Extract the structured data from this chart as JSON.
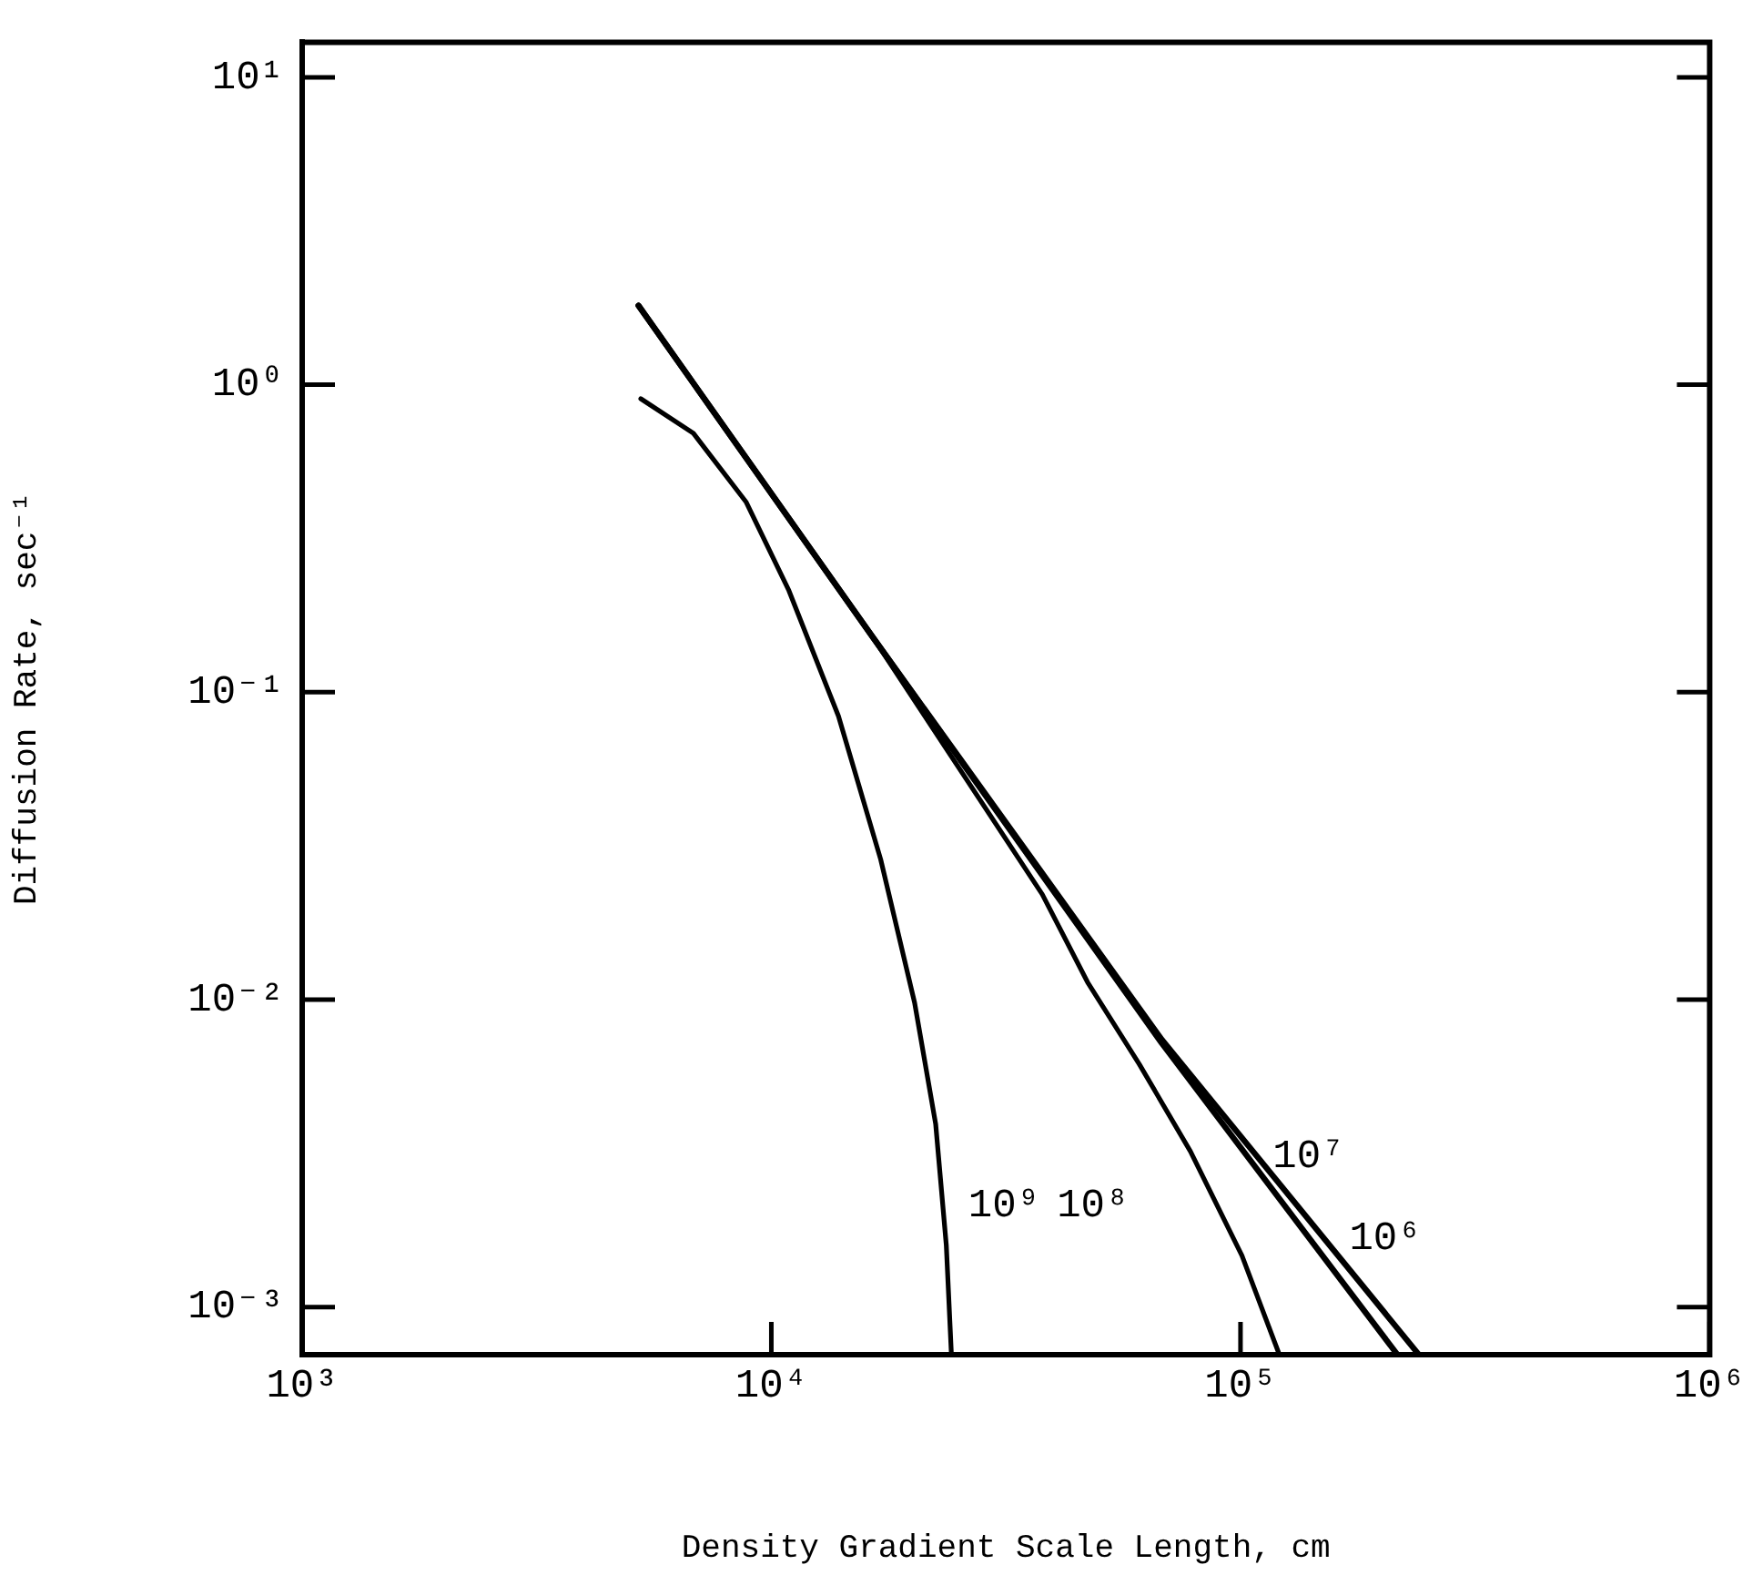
{
  "chart_data": {
    "type": "line",
    "xlabel": "Density Gradient Scale Length, cm",
    "ylabel": "Diffusion Rate, sec⁻¹",
    "log": "xy",
    "line_style": "solid",
    "xlim": [
      1000,
      1000000
    ],
    "ylim": [
      0.0007,
      13
    ],
    "xticks": [
      {
        "value": 1000,
        "label": "10³"
      },
      {
        "value": 10000,
        "label": "10⁴"
      },
      {
        "value": 100000,
        "label": "10⁵"
      },
      {
        "value": 1000000,
        "label": "10⁶"
      }
    ],
    "yticks": [
      {
        "value": 0.001,
        "label": "10⁻³"
      },
      {
        "value": 0.01,
        "label": "10⁻²"
      },
      {
        "value": 0.1,
        "label": "10⁻¹"
      },
      {
        "value": 1,
        "label": "10⁰"
      },
      {
        "value": 10,
        "label": "10¹"
      }
    ],
    "series": [
      {
        "name": "10⁶",
        "color": "#000000",
        "x": [
          5210,
          16400,
          68000,
          240000
        ],
        "values": [
          1.81,
          0.152,
          0.0074,
          0.0007
        ]
      },
      {
        "name": "10⁷",
        "color": "#000000",
        "x": [
          5210,
          16400,
          68000,
          216000
        ],
        "values": [
          1.81,
          0.152,
          0.0072,
          0.0007
        ]
      },
      {
        "name": "10⁸",
        "color": "#000000",
        "x": [
          5210,
          16400,
          37800,
          47200,
          60800,
          78200,
          100700,
          121000
        ],
        "values": [
          1.81,
          0.152,
          0.022,
          0.0114,
          0.00618,
          0.00321,
          0.00147,
          0.0007
        ]
      },
      {
        "name": "10⁹",
        "color": "#000000",
        "x": [
          5270,
          6820,
          8830,
          10900,
          13900,
          17100,
          20200,
          22400,
          23600,
          24200
        ],
        "values": [
          0.9,
          0.695,
          0.416,
          0.214,
          0.0836,
          0.0286,
          0.00977,
          0.00394,
          0.00159,
          0.0007
        ]
      }
    ]
  }
}
